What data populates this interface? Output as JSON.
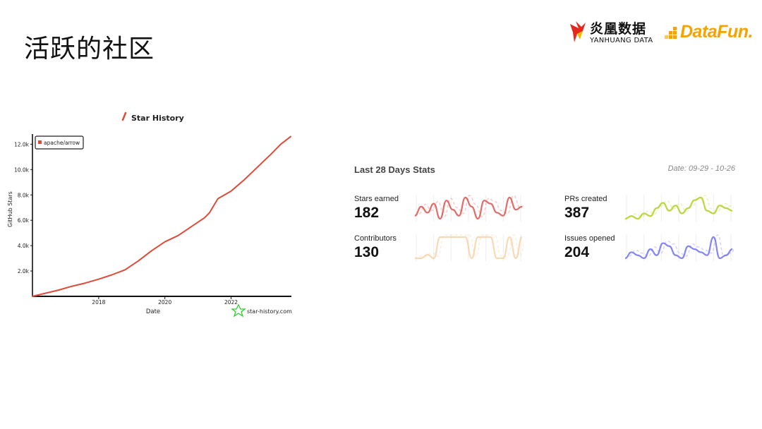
{
  "slide": {
    "title": "活跃的社区"
  },
  "logos": {
    "yanhuang": {
      "cn": "炎凰数据",
      "en": "YANHUANG DATA"
    },
    "datafun": {
      "text": "DataFun."
    }
  },
  "chart_data": {
    "type": "line",
    "title": "Star History",
    "xlabel": "Date",
    "ylabel": "GitHub Stars",
    "legend": "apache/arrow",
    "watermark": "star-history.com",
    "x_ticks": [
      "2018",
      "2020",
      "2022"
    ],
    "y_ticks": [
      "2.0k",
      "4.0k",
      "6.0k",
      "8.0k",
      "10.0k",
      "12.0k"
    ],
    "xlim": [
      2016.0,
      2023.8
    ],
    "ylim": [
      0,
      12800
    ],
    "color": "#dd4b39",
    "series": [
      {
        "name": "apache/arrow",
        "x": [
          2016.0,
          2016.4,
          2016.8,
          2017.2,
          2017.6,
          2018.0,
          2018.4,
          2018.8,
          2019.2,
          2019.6,
          2020.0,
          2020.4,
          2020.8,
          2021.2,
          2021.35,
          2021.6,
          2022.0,
          2022.4,
          2022.8,
          2023.2,
          2023.5,
          2023.8
        ],
        "y": [
          0,
          250,
          500,
          800,
          1050,
          1350,
          1700,
          2100,
          2800,
          3600,
          4300,
          4800,
          5500,
          6200,
          6600,
          7700,
          8300,
          9200,
          10200,
          11200,
          12000,
          12600
        ]
      }
    ]
  },
  "stats": {
    "heading": "Last 28 Days Stats",
    "date": "Date: 09-29 - 10-26",
    "items": [
      {
        "label": "Stars earned",
        "value": "182",
        "color": "#d9534f",
        "opacity": 0.85,
        "spark": [
          3,
          6,
          4,
          7,
          2,
          8,
          5,
          3,
          9,
          6,
          2,
          8,
          7,
          4,
          3,
          9,
          5,
          6
        ]
      },
      {
        "label": "PRs created",
        "value": "387",
        "color": "#b4d32a",
        "opacity": 0.9,
        "spark": [
          2,
          3,
          2,
          4,
          3,
          6,
          8,
          5,
          7,
          4,
          6,
          9,
          10,
          5,
          4,
          7,
          6,
          5
        ]
      },
      {
        "label": "Contributors",
        "value": "130",
        "color": "#f6c48b",
        "opacity": 0.65,
        "spark": [
          2,
          2,
          3,
          2,
          8,
          8,
          8,
          8,
          8,
          2,
          8,
          8,
          8,
          2,
          2,
          8,
          2,
          8
        ]
      },
      {
        "label": "Issues opened",
        "value": "204",
        "color": "#6e6ef0",
        "opacity": 0.85,
        "spark": [
          2,
          4,
          3,
          2,
          5,
          3,
          7,
          6,
          3,
          2,
          6,
          5,
          4,
          3,
          9,
          2,
          3,
          5
        ]
      }
    ]
  }
}
